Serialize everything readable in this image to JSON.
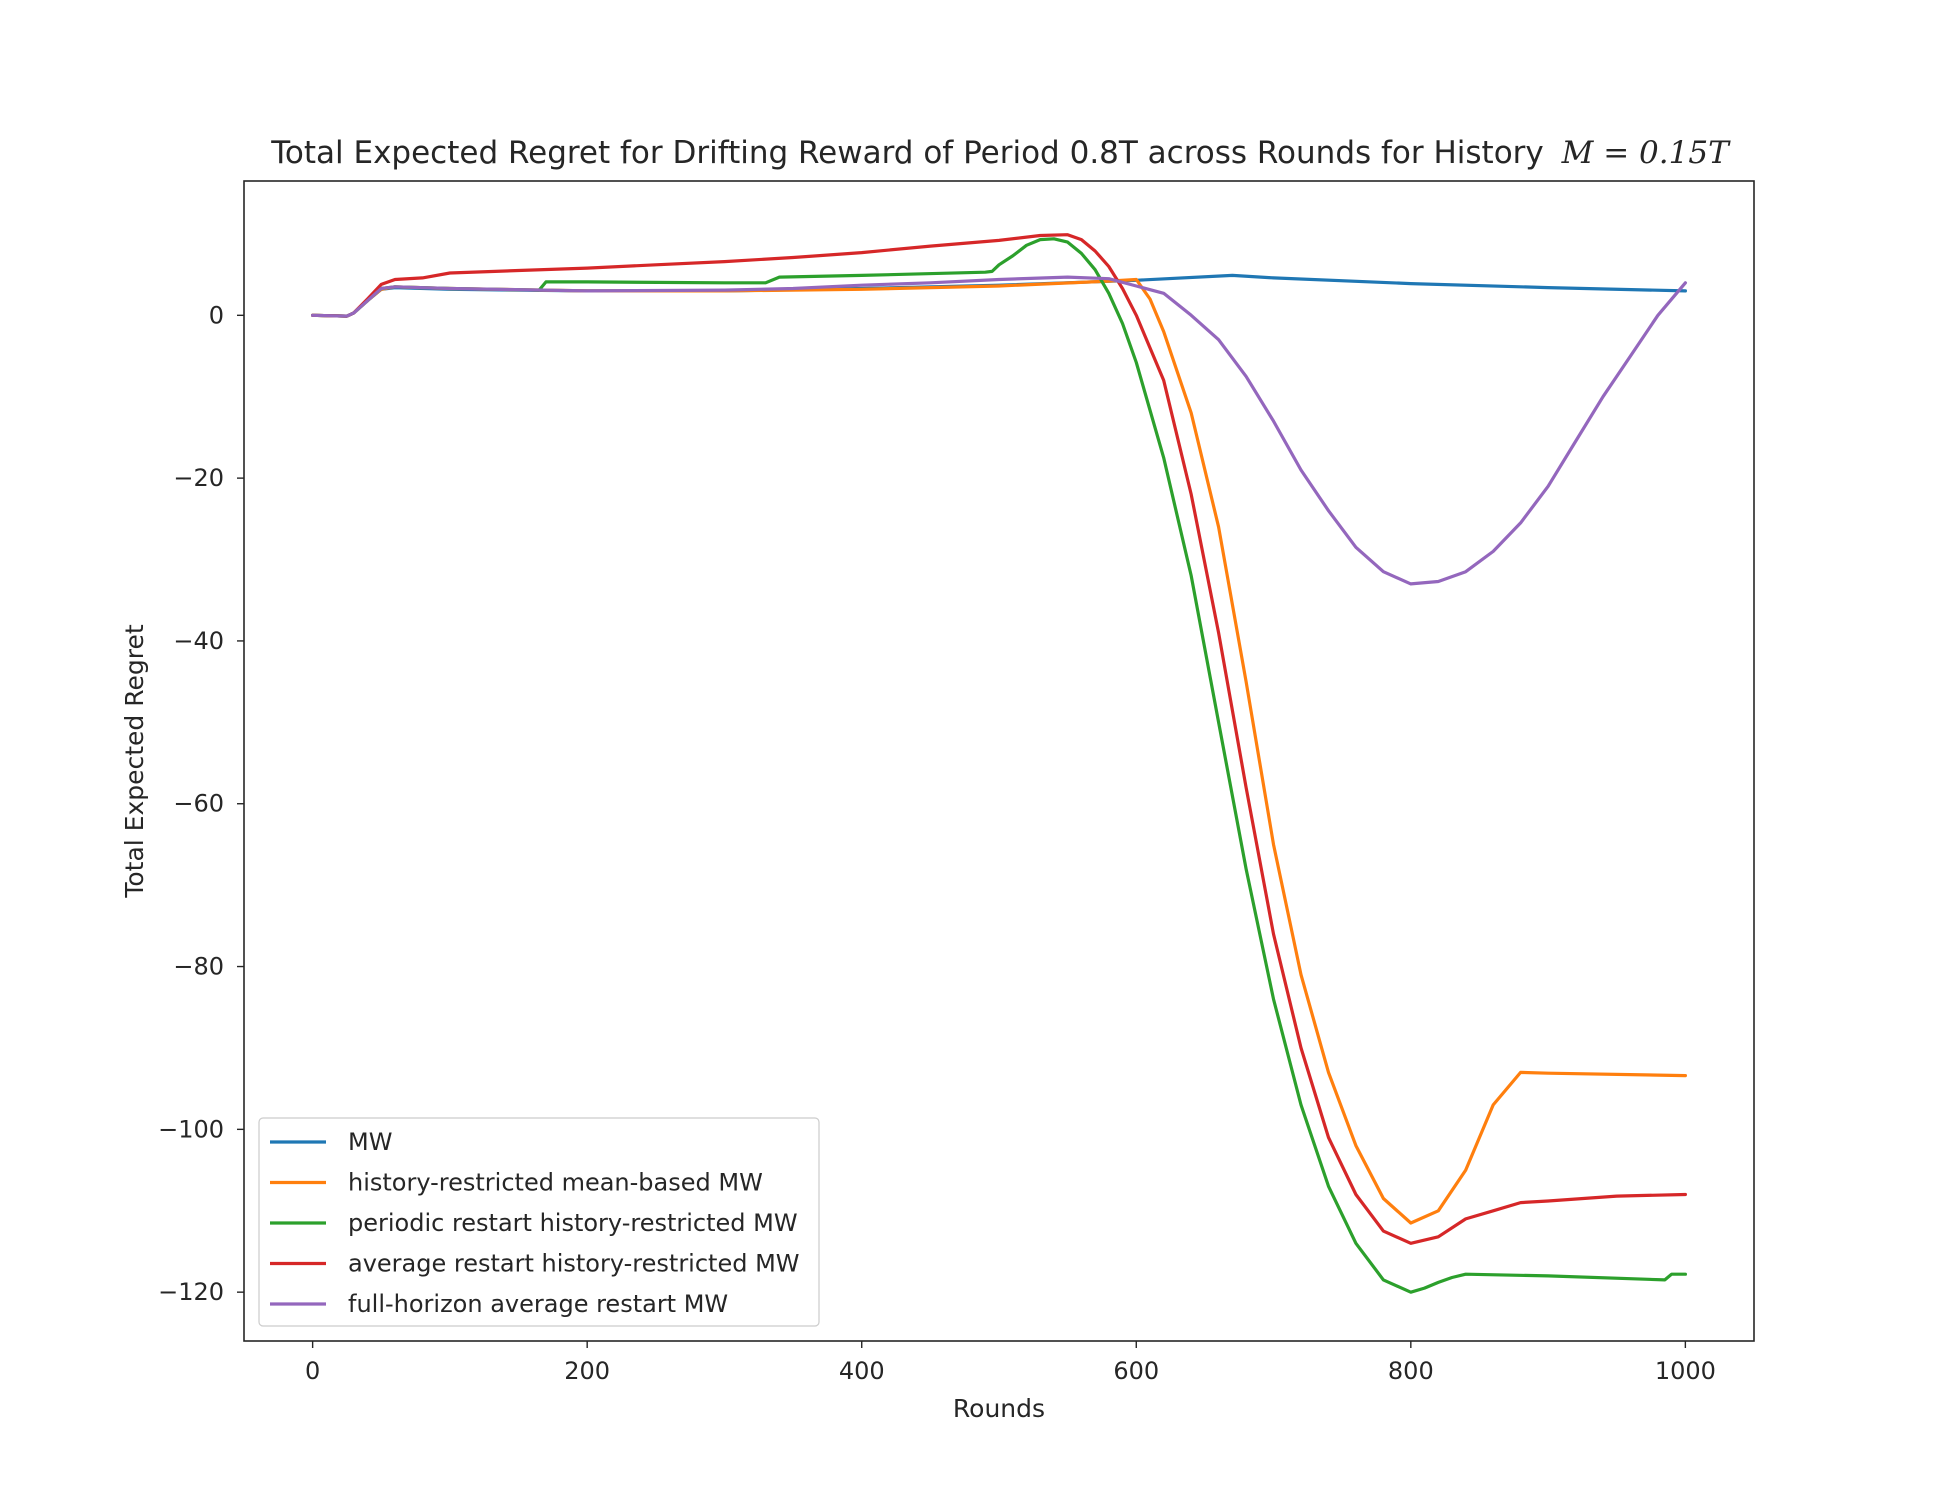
{
  "chart_data": {
    "type": "line",
    "title": "Total Expected Regret for Drifting Reward of Period 0.8T across Rounds for History",
    "title_math": "M = 0.15T",
    "xlabel": "Rounds",
    "ylabel": "Total Expected Regret",
    "xlim": [
      -50,
      1050
    ],
    "ylim": [
      -126,
      16.5
    ],
    "xticks": [
      0,
      200,
      400,
      600,
      800,
      1000
    ],
    "yticks": [
      0,
      -20,
      -40,
      -60,
      -80,
      -100,
      -120
    ],
    "grid": false,
    "legend_position": "lower-left",
    "series": [
      {
        "name": "MW",
        "color": "#1f77b4",
        "points": [
          [
            0,
            0
          ],
          [
            25,
            -0.1
          ],
          [
            30,
            0.3
          ],
          [
            40,
            1.8
          ],
          [
            50,
            3.2
          ],
          [
            60,
            3.4
          ],
          [
            100,
            3.2
          ],
          [
            200,
            3.0
          ],
          [
            300,
            3.0
          ],
          [
            400,
            3.3
          ],
          [
            500,
            3.7
          ],
          [
            600,
            4.3
          ],
          [
            670,
            4.9
          ],
          [
            700,
            4.6
          ],
          [
            800,
            3.9
          ],
          [
            900,
            3.4
          ],
          [
            1000,
            3.0
          ]
        ]
      },
      {
        "name": "history-restricted mean-based MW",
        "color": "#ff7f0e",
        "points": [
          [
            0,
            0
          ],
          [
            25,
            -0.1
          ],
          [
            30,
            0.3
          ],
          [
            40,
            1.8
          ],
          [
            50,
            3.2
          ],
          [
            60,
            3.5
          ],
          [
            100,
            3.3
          ],
          [
            200,
            3.0
          ],
          [
            300,
            3.0
          ],
          [
            400,
            3.2
          ],
          [
            500,
            3.6
          ],
          [
            580,
            4.2
          ],
          [
            600,
            4.4
          ],
          [
            610,
            2
          ],
          [
            620,
            -2
          ],
          [
            640,
            -12
          ],
          [
            660,
            -26
          ],
          [
            680,
            -45
          ],
          [
            700,
            -65
          ],
          [
            720,
            -81
          ],
          [
            740,
            -93
          ],
          [
            760,
            -102
          ],
          [
            780,
            -108.5
          ],
          [
            800,
            -111.5
          ],
          [
            820,
            -110
          ],
          [
            840,
            -105
          ],
          [
            860,
            -97
          ],
          [
            880,
            -93
          ],
          [
            900,
            -93.1
          ],
          [
            1000,
            -93.4
          ]
        ]
      },
      {
        "name": "periodic restart history-restricted MW",
        "color": "#2ca02c",
        "points": [
          [
            0,
            0
          ],
          [
            25,
            -0.1
          ],
          [
            30,
            0.3
          ],
          [
            40,
            1.8
          ],
          [
            50,
            3.3
          ],
          [
            60,
            3.5
          ],
          [
            100,
            3.3
          ],
          [
            165,
            3.1
          ],
          [
            170,
            4.1
          ],
          [
            200,
            4.1
          ],
          [
            300,
            4.0
          ],
          [
            330,
            4.0
          ],
          [
            340,
            4.7
          ],
          [
            400,
            4.9
          ],
          [
            490,
            5.3
          ],
          [
            495,
            5.4
          ],
          [
            500,
            6.2
          ],
          [
            510,
            7.3
          ],
          [
            520,
            8.6
          ],
          [
            530,
            9.3
          ],
          [
            540,
            9.4
          ],
          [
            550,
            9.0
          ],
          [
            560,
            7.6
          ],
          [
            570,
            5.6
          ],
          [
            580,
            2.7
          ],
          [
            590,
            -1.0
          ],
          [
            600,
            -5.8
          ],
          [
            620,
            -17.5
          ],
          [
            640,
            -32
          ],
          [
            660,
            -50
          ],
          [
            680,
            -68
          ],
          [
            700,
            -84
          ],
          [
            720,
            -97
          ],
          [
            740,
            -107
          ],
          [
            760,
            -114
          ],
          [
            780,
            -118.5
          ],
          [
            800,
            -120
          ],
          [
            810,
            -119.5
          ],
          [
            820,
            -118.8
          ],
          [
            830,
            -118.2
          ],
          [
            840,
            -117.8
          ],
          [
            900,
            -118
          ],
          [
            985,
            -118.5
          ],
          [
            990,
            -117.8
          ],
          [
            1000,
            -117.8
          ]
        ]
      },
      {
        "name": "average restart history-restricted MW",
        "color": "#d62728",
        "points": [
          [
            0,
            0
          ],
          [
            25,
            -0.1
          ],
          [
            30,
            0.3
          ],
          [
            40,
            2
          ],
          [
            50,
            3.8
          ],
          [
            60,
            4.4
          ],
          [
            80,
            4.6
          ],
          [
            100,
            5.2
          ],
          [
            150,
            5.5
          ],
          [
            200,
            5.8
          ],
          [
            250,
            6.2
          ],
          [
            300,
            6.6
          ],
          [
            350,
            7.1
          ],
          [
            400,
            7.7
          ],
          [
            450,
            8.5
          ],
          [
            500,
            9.2
          ],
          [
            530,
            9.8
          ],
          [
            550,
            9.9
          ],
          [
            560,
            9.3
          ],
          [
            570,
            7.9
          ],
          [
            580,
            6.0
          ],
          [
            590,
            3.3
          ],
          [
            600,
            0
          ],
          [
            620,
            -8
          ],
          [
            640,
            -22
          ],
          [
            660,
            -39
          ],
          [
            680,
            -58
          ],
          [
            700,
            -76
          ],
          [
            720,
            -90
          ],
          [
            740,
            -101
          ],
          [
            760,
            -108
          ],
          [
            780,
            -112.5
          ],
          [
            800,
            -114
          ],
          [
            820,
            -113.2
          ],
          [
            840,
            -111
          ],
          [
            860,
            -110
          ],
          [
            880,
            -109
          ],
          [
            900,
            -108.8
          ],
          [
            950,
            -108.2
          ],
          [
            1000,
            -108
          ]
        ]
      },
      {
        "name": "full-horizon average restart MW",
        "color": "#9467bd",
        "points": [
          [
            0,
            0
          ],
          [
            25,
            -0.1
          ],
          [
            30,
            0.3
          ],
          [
            40,
            1.8
          ],
          [
            50,
            3.3
          ],
          [
            60,
            3.5
          ],
          [
            100,
            3.3
          ],
          [
            200,
            3.0
          ],
          [
            300,
            3.1
          ],
          [
            350,
            3.3
          ],
          [
            400,
            3.7
          ],
          [
            450,
            4.0
          ],
          [
            500,
            4.4
          ],
          [
            550,
            4.7
          ],
          [
            580,
            4.5
          ],
          [
            600,
            3.6
          ],
          [
            620,
            2.7
          ],
          [
            640,
            0
          ],
          [
            660,
            -3
          ],
          [
            680,
            -7.5
          ],
          [
            700,
            -13
          ],
          [
            720,
            -19
          ],
          [
            740,
            -24
          ],
          [
            760,
            -28.5
          ],
          [
            780,
            -31.5
          ],
          [
            800,
            -33
          ],
          [
            820,
            -32.7
          ],
          [
            840,
            -31.5
          ],
          [
            860,
            -29
          ],
          [
            880,
            -25.5
          ],
          [
            900,
            -21
          ],
          [
            920,
            -15.5
          ],
          [
            940,
            -10
          ],
          [
            960,
            -5
          ],
          [
            980,
            0
          ],
          [
            1000,
            4
          ]
        ]
      }
    ]
  }
}
